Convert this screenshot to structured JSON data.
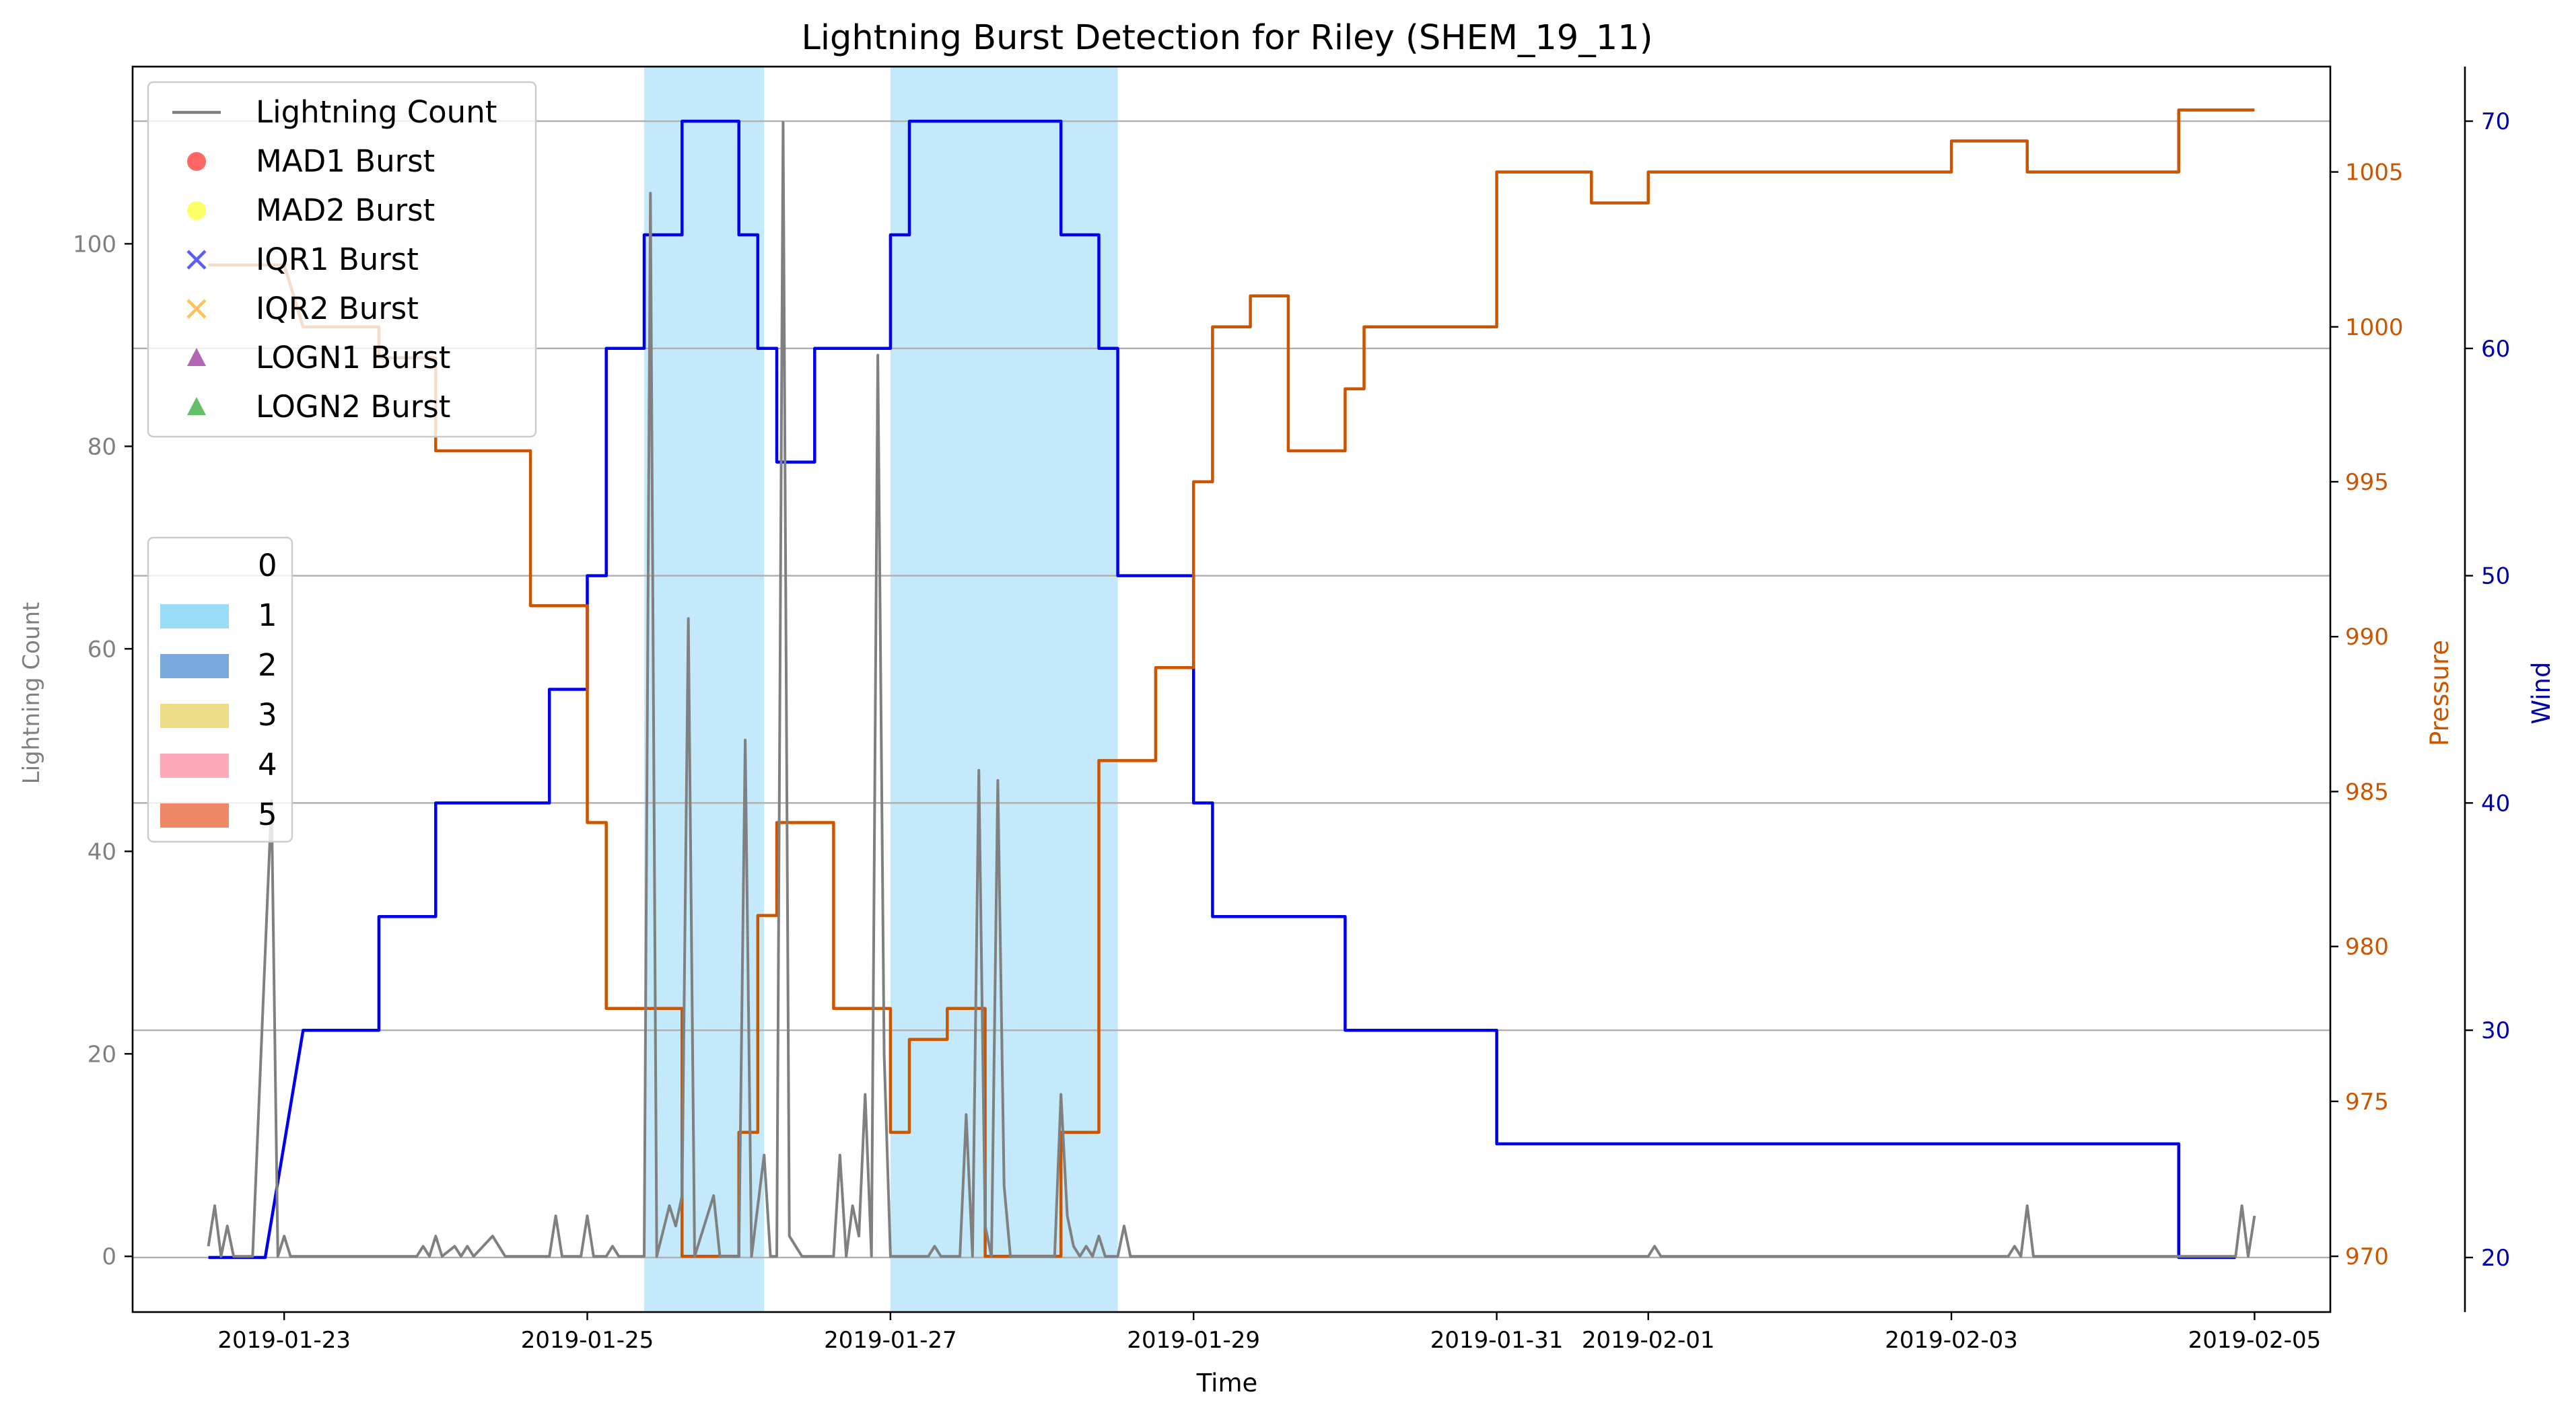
{
  "chart_data": {
    "type": "line",
    "title": "Lightning Burst Detection for Riley (SHEM_19_11)",
    "xlabel": "Time",
    "x_range": [
      "2019-01-22T00:00",
      "2019-02-05T12:00"
    ],
    "x_ticks": [
      "2019-01-23",
      "2019-01-25",
      "2019-01-27",
      "2019-01-29",
      "2019-01-31",
      "2019-02-01",
      "2019-02-03",
      "2019-02-05"
    ],
    "axes": {
      "left": {
        "label": "Lightning Count",
        "range": [
          -5.5,
          117.5
        ],
        "ticks": [
          "0",
          "20",
          "40",
          "60",
          "80",
          "100"
        ],
        "color": "#808080"
      },
      "pressure": {
        "label": "Pressure",
        "range": [
          968.2,
          1008.4
        ],
        "ticks": [
          "970",
          "975",
          "980",
          "985",
          "990",
          "995",
          "1000",
          "1005"
        ],
        "color": "#cc5500"
      },
      "wind": {
        "label": "Wind",
        "range": [
          17.6,
          72.4
        ],
        "ticks": [
          "20",
          "30",
          "40",
          "50",
          "60",
          "70"
        ],
        "color": "#0000aa"
      }
    },
    "grid": "horizontal lines at wind ticks",
    "legend_series": {
      "placement": "upper-left",
      "entries": [
        {
          "name": "Lightning Count",
          "marker": "line",
          "color": "#808080"
        },
        {
          "name": "MAD1 Burst",
          "marker": "circle",
          "color": "#ff3333"
        },
        {
          "name": "MAD2 Burst",
          "marker": "circle",
          "color": "#ffff33"
        },
        {
          "name": "IQR1 Burst",
          "marker": "x",
          "color": "#3333ff"
        },
        {
          "name": "IQR2 Burst",
          "marker": "x",
          "color": "#ffb333"
        },
        {
          "name": "LOGN1 Burst",
          "marker": "triangle",
          "color": "#993399"
        },
        {
          "name": "LOGN2 Burst",
          "marker": "triangle",
          "color": "#33aa33"
        }
      ]
    },
    "legend_category": {
      "placement": "center-left",
      "entries": [
        {
          "name": "0",
          "color": ""
        },
        {
          "name": "1",
          "color": "#99dcf8"
        },
        {
          "name": "2",
          "color": "#7aaadd"
        },
        {
          "name": "3",
          "color": "#eedd88"
        },
        {
          "name": "4",
          "color": "#ffaabb"
        },
        {
          "name": "5",
          "color": "#ee8866"
        }
      ]
    },
    "category_spans": [
      {
        "category": "1",
        "start": "2019-01-25T09:00",
        "end": "2019-01-26T04:00",
        "color": "#c3e9fb"
      },
      {
        "category": "1",
        "start": "2019-01-27T00:00",
        "end": "2019-01-28T12:00",
        "color": "#c3e9fb"
      }
    ],
    "series": [
      {
        "name": "Wind",
        "axis": "wind",
        "color": "#0000ee",
        "step": true,
        "points": [
          [
            "2019-01-22T12:00",
            20
          ],
          [
            "2019-01-22T21:00",
            20
          ],
          [
            "2019-01-23T00:00",
            25
          ],
          [
            "2019-01-23T03:00",
            30
          ],
          [
            "2019-01-23T15:00",
            30
          ],
          [
            "2019-01-23T15:00",
            35
          ],
          [
            "2019-01-24T00:00",
            35
          ],
          [
            "2019-01-24T00:00",
            40
          ],
          [
            "2019-01-24T18:00",
            40
          ],
          [
            "2019-01-24T18:00",
            45
          ],
          [
            "2019-01-25T00:00",
            45
          ],
          [
            "2019-01-25T00:00",
            50
          ],
          [
            "2019-01-25T03:00",
            50
          ],
          [
            "2019-01-25T03:00",
            60
          ],
          [
            "2019-01-25T09:00",
            60
          ],
          [
            "2019-01-25T09:00",
            65
          ],
          [
            "2019-01-25T15:00",
            65
          ],
          [
            "2019-01-25T15:00",
            70
          ],
          [
            "2019-01-26T00:00",
            70
          ],
          [
            "2019-01-26T00:00",
            65
          ],
          [
            "2019-01-26T03:00",
            65
          ],
          [
            "2019-01-26T03:00",
            60
          ],
          [
            "2019-01-26T06:00",
            60
          ],
          [
            "2019-01-26T06:00",
            55
          ],
          [
            "2019-01-26T12:00",
            55
          ],
          [
            "2019-01-26T12:00",
            60
          ],
          [
            "2019-01-27T00:00",
            60
          ],
          [
            "2019-01-27T00:00",
            65
          ],
          [
            "2019-01-27T03:00",
            65
          ],
          [
            "2019-01-27T03:00",
            70
          ],
          [
            "2019-01-28T03:00",
            70
          ],
          [
            "2019-01-28T03:00",
            65
          ],
          [
            "2019-01-28T09:00",
            65
          ],
          [
            "2019-01-28T09:00",
            60
          ],
          [
            "2019-01-28T12:00",
            60
          ],
          [
            "2019-01-28T12:00",
            50
          ],
          [
            "2019-01-29T00:00",
            50
          ],
          [
            "2019-01-29T00:00",
            40
          ],
          [
            "2019-01-29T03:00",
            40
          ],
          [
            "2019-01-29T03:00",
            35
          ],
          [
            "2019-01-30T00:00",
            35
          ],
          [
            "2019-01-30T00:00",
            30
          ],
          [
            "2019-01-31T00:00",
            30
          ],
          [
            "2019-01-31T00:00",
            25
          ],
          [
            "2019-02-04T12:00",
            25
          ],
          [
            "2019-02-04T12:00",
            20
          ],
          [
            "2019-02-04T21:00",
            20
          ]
        ]
      },
      {
        "name": "Pressure",
        "axis": "pressure",
        "color": "#cc5500",
        "step": true,
        "points": [
          [
            "2019-01-22T12:00",
            1002
          ],
          [
            "2019-01-23T00:00",
            1002
          ],
          [
            "2019-01-23T03:00",
            1000
          ],
          [
            "2019-01-23T15:00",
            1000
          ],
          [
            "2019-01-23T15:00",
            999
          ],
          [
            "2019-01-24T00:00",
            999
          ],
          [
            "2019-01-24T00:00",
            996
          ],
          [
            "2019-01-24T15:00",
            996
          ],
          [
            "2019-01-24T15:00",
            991
          ],
          [
            "2019-01-25T00:00",
            991
          ],
          [
            "2019-01-25T00:00",
            984
          ],
          [
            "2019-01-25T03:00",
            984
          ],
          [
            "2019-01-25T03:00",
            978
          ],
          [
            "2019-01-25T15:00",
            978
          ],
          [
            "2019-01-25T15:00",
            970
          ],
          [
            "2019-01-26T00:00",
            970
          ],
          [
            "2019-01-26T00:00",
            974
          ],
          [
            "2019-01-26T03:00",
            974
          ],
          [
            "2019-01-26T03:00",
            981
          ],
          [
            "2019-01-26T06:00",
            981
          ],
          [
            "2019-01-26T06:00",
            984
          ],
          [
            "2019-01-26T15:00",
            984
          ],
          [
            "2019-01-26T15:00",
            978
          ],
          [
            "2019-01-27T00:00",
            978
          ],
          [
            "2019-01-27T00:00",
            974
          ],
          [
            "2019-01-27T03:00",
            974
          ],
          [
            "2019-01-27T03:00",
            977
          ],
          [
            "2019-01-27T09:00",
            977
          ],
          [
            "2019-01-27T09:00",
            978
          ],
          [
            "2019-01-27T15:00",
            978
          ],
          [
            "2019-01-27T15:00",
            970
          ],
          [
            "2019-01-28T03:00",
            970
          ],
          [
            "2019-01-28T03:00",
            974
          ],
          [
            "2019-01-28T09:00",
            974
          ],
          [
            "2019-01-28T09:00",
            986
          ],
          [
            "2019-01-28T18:00",
            986
          ],
          [
            "2019-01-28T18:00",
            989
          ],
          [
            "2019-01-29T00:00",
            989
          ],
          [
            "2019-01-29T00:00",
            995
          ],
          [
            "2019-01-29T03:00",
            995
          ],
          [
            "2019-01-29T03:00",
            1000
          ],
          [
            "2019-01-29T09:00",
            1000
          ],
          [
            "2019-01-29T09:00",
            1001
          ],
          [
            "2019-01-29T15:00",
            1001
          ],
          [
            "2019-01-29T15:00",
            996
          ],
          [
            "2019-01-30T00:00",
            996
          ],
          [
            "2019-01-30T00:00",
            998
          ],
          [
            "2019-01-30T03:00",
            998
          ],
          [
            "2019-01-30T03:00",
            1000
          ],
          [
            "2019-01-31T00:00",
            1000
          ],
          [
            "2019-01-31T00:00",
            1005
          ],
          [
            "2019-01-31T15:00",
            1005
          ],
          [
            "2019-01-31T15:00",
            1004
          ],
          [
            "2019-02-01T00:00",
            1004
          ],
          [
            "2019-02-01T00:00",
            1005
          ],
          [
            "2019-02-03T00:00",
            1005
          ],
          [
            "2019-02-03T00:00",
            1006
          ],
          [
            "2019-02-03T12:00",
            1006
          ],
          [
            "2019-02-03T12:00",
            1005
          ],
          [
            "2019-02-04T12:00",
            1005
          ],
          [
            "2019-02-04T12:00",
            1007
          ],
          [
            "2019-02-05T00:00",
            1007
          ]
        ]
      },
      {
        "name": "Lightning Count",
        "axis": "left",
        "color": "#808080",
        "step": false,
        "points": [
          [
            "2019-01-22T12:00",
            1
          ],
          [
            "2019-01-22T13:00",
            5
          ],
          [
            "2019-01-22T14:00",
            0
          ],
          [
            "2019-01-22T15:00",
            3
          ],
          [
            "2019-01-22T16:00",
            0
          ],
          [
            "2019-01-22T19:00",
            0
          ],
          [
            "2019-01-22T21:00",
            30
          ],
          [
            "2019-01-22T22:00",
            45
          ],
          [
            "2019-01-22T23:00",
            0
          ],
          [
            "2019-01-23T00:00",
            2
          ],
          [
            "2019-01-23T01:00",
            0
          ],
          [
            "2019-01-23T21:00",
            0
          ],
          [
            "2019-01-23T22:00",
            1
          ],
          [
            "2019-01-23T23:00",
            0
          ],
          [
            "2019-01-24T00:00",
            2
          ],
          [
            "2019-01-24T01:00",
            0
          ],
          [
            "2019-01-24T03:00",
            1
          ],
          [
            "2019-01-24T04:00",
            0
          ],
          [
            "2019-01-24T05:00",
            1
          ],
          [
            "2019-01-24T06:00",
            0
          ],
          [
            "2019-01-24T09:00",
            2
          ],
          [
            "2019-01-24T10:00",
            1
          ],
          [
            "2019-01-24T11:00",
            0
          ],
          [
            "2019-01-24T18:00",
            0
          ],
          [
            "2019-01-24T19:00",
            4
          ],
          [
            "2019-01-24T20:00",
            0
          ],
          [
            "2019-01-24T23:00",
            0
          ],
          [
            "2019-01-25T00:00",
            4
          ],
          [
            "2019-01-25T01:00",
            0
          ],
          [
            "2019-01-25T03:00",
            0
          ],
          [
            "2019-01-25T04:00",
            1
          ],
          [
            "2019-01-25T05:00",
            0
          ],
          [
            "2019-01-25T09:00",
            0
          ],
          [
            "2019-01-25T10:00",
            105
          ],
          [
            "2019-01-25T11:00",
            0
          ],
          [
            "2019-01-25T13:00",
            5
          ],
          [
            "2019-01-25T14:00",
            3
          ],
          [
            "2019-01-25T15:00",
            6
          ],
          [
            "2019-01-25T16:00",
            63
          ],
          [
            "2019-01-25T17:00",
            0
          ],
          [
            "2019-01-25T20:00",
            6
          ],
          [
            "2019-01-25T21:00",
            0
          ],
          [
            "2019-01-26T00:00",
            0
          ],
          [
            "2019-01-26T01:00",
            51
          ],
          [
            "2019-01-26T02:00",
            0
          ],
          [
            "2019-01-26T04:00",
            10
          ],
          [
            "2019-01-26T05:00",
            0
          ],
          [
            "2019-01-26T06:00",
            0
          ],
          [
            "2019-01-26T07:00",
            112
          ],
          [
            "2019-01-26T08:00",
            2
          ],
          [
            "2019-01-26T09:00",
            1
          ],
          [
            "2019-01-26T10:00",
            0
          ],
          [
            "2019-01-26T15:00",
            0
          ],
          [
            "2019-01-26T16:00",
            10
          ],
          [
            "2019-01-26T17:00",
            0
          ],
          [
            "2019-01-26T18:00",
            5
          ],
          [
            "2019-01-26T19:00",
            2
          ],
          [
            "2019-01-26T20:00",
            16
          ],
          [
            "2019-01-26T21:00",
            0
          ],
          [
            "2019-01-26T22:00",
            89
          ],
          [
            "2019-01-26T23:00",
            20
          ],
          [
            "2019-01-27T00:00",
            0
          ],
          [
            "2019-01-27T06:00",
            0
          ],
          [
            "2019-01-27T07:00",
            1
          ],
          [
            "2019-01-27T08:00",
            0
          ],
          [
            "2019-01-27T11:00",
            0
          ],
          [
            "2019-01-27T12:00",
            14
          ],
          [
            "2019-01-27T13:00",
            0
          ],
          [
            "2019-01-27T14:00",
            48
          ],
          [
            "2019-01-27T15:00",
            3
          ],
          [
            "2019-01-27T16:00",
            0
          ],
          [
            "2019-01-27T17:00",
            47
          ],
          [
            "2019-01-27T18:00",
            7
          ],
          [
            "2019-01-27T19:00",
            0
          ],
          [
            "2019-01-28T02:00",
            0
          ],
          [
            "2019-01-28T03:00",
            16
          ],
          [
            "2019-01-28T04:00",
            4
          ],
          [
            "2019-01-28T05:00",
            1
          ],
          [
            "2019-01-28T06:00",
            0
          ],
          [
            "2019-01-28T07:00",
            1
          ],
          [
            "2019-01-28T08:00",
            0
          ],
          [
            "2019-01-28T09:00",
            2
          ],
          [
            "2019-01-28T10:00",
            0
          ],
          [
            "2019-01-28T12:00",
            0
          ],
          [
            "2019-01-28T13:00",
            3
          ],
          [
            "2019-01-28T14:00",
            0
          ],
          [
            "2019-02-01T00:00",
            0
          ],
          [
            "2019-02-01T01:00",
            1
          ],
          [
            "2019-02-01T02:00",
            0
          ],
          [
            "2019-02-03T09:00",
            0
          ],
          [
            "2019-02-03T10:00",
            1
          ],
          [
            "2019-02-03T11:00",
            0
          ],
          [
            "2019-02-03T12:00",
            5
          ],
          [
            "2019-02-03T13:00",
            0
          ],
          [
            "2019-02-04T21:00",
            0
          ],
          [
            "2019-02-04T22:00",
            5
          ],
          [
            "2019-02-04T23:00",
            0
          ],
          [
            "2019-02-05T00:00",
            4
          ]
        ]
      }
    ]
  }
}
